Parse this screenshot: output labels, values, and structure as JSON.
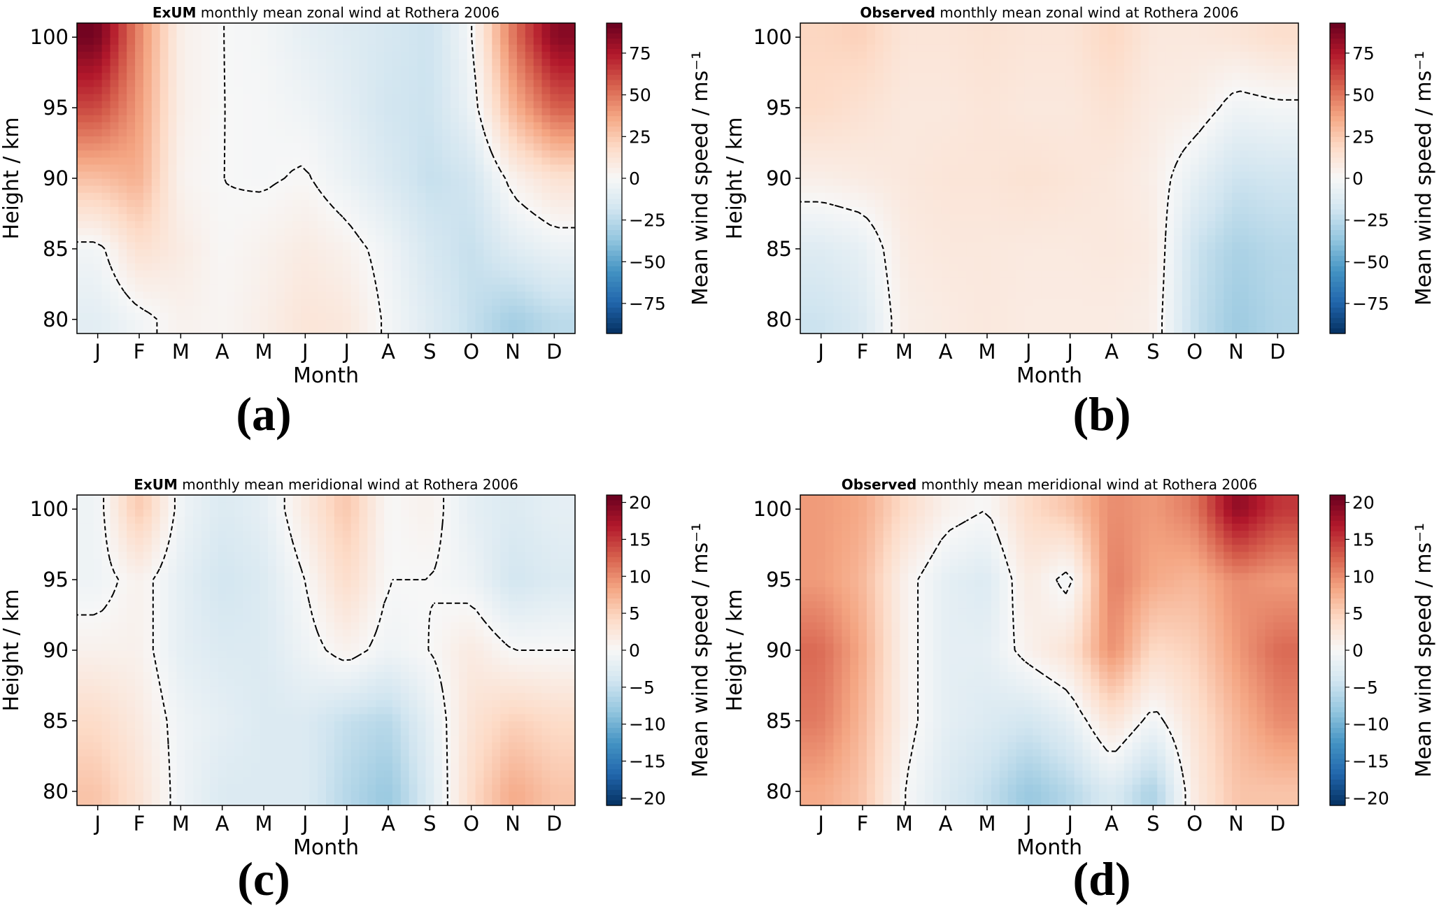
{
  "figure": {
    "panels": [
      {
        "id": "a",
        "label": "(a)",
        "title_bold": "ExUM",
        "title_rest": " monthly mean zonal wind at Rothera 2006",
        "colorbar_label": "Mean wind speed / ms⁻¹",
        "colorbar_ticks": [
          "75",
          "50",
          "25",
          "0",
          "−25",
          "−50",
          "−75"
        ]
      },
      {
        "id": "b",
        "label": "(b)",
        "title_bold": "Observed",
        "title_rest": " monthly mean zonal wind at Rothera 2006",
        "colorbar_label": "Mean wind speed / ms⁻¹",
        "colorbar_ticks": [
          "75",
          "50",
          "25",
          "0",
          "−25",
          "−50",
          "−75"
        ]
      },
      {
        "id": "c",
        "label": "(c)",
        "title_bold": "ExUM",
        "title_rest": " monthly mean meridional wind at Rothera 2006",
        "colorbar_label": "Mean wind speed / ms⁻¹",
        "colorbar_ticks": [
          "20",
          "15",
          "10",
          "5",
          "0",
          "−5",
          "−10",
          "−15",
          "−20"
        ]
      },
      {
        "id": "d",
        "label": "(d)",
        "title_bold": "Observed",
        "title_rest": " monthly mean meridional wind at Rothera 2006",
        "colorbar_label": "Mean wind speed / ms⁻¹",
        "colorbar_ticks": [
          "20",
          "15",
          "10",
          "5",
          "0",
          "−5",
          "−10",
          "−15",
          "−20"
        ]
      }
    ]
  },
  "chart_data": [
    {
      "type": "heatmap",
      "title": "ExUM monthly mean zonal wind at Rothera 2006",
      "xlabel": "Month",
      "ylabel": "Height / km",
      "x": [
        "J",
        "F",
        "M",
        "A",
        "M",
        "J",
        "J",
        "A",
        "S",
        "O",
        "N",
        "D"
      ],
      "y": [
        80,
        85,
        90,
        95,
        100
      ],
      "ylim": [
        79,
        101
      ],
      "yticks": [
        "80",
        "85",
        "90",
        "95",
        "100"
      ],
      "colorbar_label": "Mean wind speed / ms⁻¹",
      "zlim": [
        -93,
        93
      ],
      "z": [
        [
          -10,
          -3,
          4,
          2,
          6,
          12,
          10,
          -2,
          -12,
          -22,
          -32,
          -25
        ],
        [
          -3,
          15,
          8,
          1,
          4,
          8,
          4,
          -4,
          -16,
          -22,
          -12,
          -6
        ],
        [
          28,
          34,
          3,
          0,
          -1,
          1,
          -6,
          -14,
          -22,
          -18,
          4,
          14
        ],
        [
          62,
          40,
          5,
          0,
          -1,
          -4,
          -10,
          -18,
          -20,
          -6,
          32,
          56
        ],
        [
          90,
          45,
          5,
          0,
          -2,
          -8,
          -12,
          -16,
          -20,
          -2,
          50,
          85
        ]
      ],
      "zero_contour": "dashed"
    },
    {
      "type": "heatmap",
      "title": "Observed monthly mean zonal wind at Rothera 2006",
      "xlabel": "Month",
      "ylabel": "Height / km",
      "x": [
        "J",
        "F",
        "M",
        "A",
        "M",
        "J",
        "J",
        "A",
        "S",
        "O",
        "N",
        "D"
      ],
      "y": [
        80,
        85,
        90,
        95,
        100
      ],
      "ylim": [
        79,
        101
      ],
      "yticks": [
        "80",
        "85",
        "90",
        "95",
        "100"
      ],
      "colorbar_label": "Mean wind speed / ms⁻¹",
      "zlim": [
        -93,
        93
      ],
      "z": [
        [
          -20,
          -14,
          6,
          8,
          10,
          8,
          8,
          8,
          6,
          -22,
          -34,
          -28
        ],
        [
          -12,
          -8,
          8,
          10,
          10,
          9,
          9,
          10,
          8,
          -20,
          -30,
          -26
        ],
        [
          6,
          8,
          10,
          12,
          12,
          14,
          12,
          10,
          6,
          -8,
          -20,
          -18
        ],
        [
          18,
          14,
          10,
          10,
          12,
          10,
          10,
          14,
          8,
          6,
          -4,
          -2
        ],
        [
          20,
          22,
          12,
          12,
          14,
          12,
          12,
          20,
          10,
          10,
          12,
          16
        ]
      ],
      "zero_contour": "dashed"
    },
    {
      "type": "heatmap",
      "title": "ExUM monthly mean meridional wind at Rothera 2006",
      "xlabel": "Month",
      "ylabel": "Height / km",
      "x": [
        "J",
        "F",
        "M",
        "A",
        "M",
        "J",
        "J",
        "A",
        "S",
        "O",
        "N",
        "D"
      ],
      "y": [
        80,
        85,
        90,
        95,
        100
      ],
      "ylim": [
        79,
        101
      ],
      "yticks": [
        "80",
        "85",
        "90",
        "95",
        "100"
      ],
      "colorbar_label": "Mean wind speed / ms⁻¹",
      "zlim": [
        -21,
        21
      ],
      "z": [
        [
          6,
          3,
          -1,
          -3,
          -3,
          -3,
          -6,
          -8,
          -3,
          4,
          8,
          6
        ],
        [
          4,
          2,
          -1,
          -2,
          -3,
          -3,
          -5,
          -6,
          -2,
          3,
          5,
          4
        ],
        [
          1,
          1,
          -2,
          -3,
          -3,
          -1,
          1,
          -1,
          0,
          2,
          0,
          0
        ],
        [
          -1,
          1,
          -2,
          -4,
          -3,
          0,
          4,
          0,
          0,
          -1,
          -4,
          -3
        ],
        [
          -1,
          6,
          -1,
          -3,
          -2,
          2,
          6,
          0,
          1,
          -2,
          -3,
          -2
        ]
      ],
      "zero_contour": "dashed"
    },
    {
      "type": "heatmap",
      "title": "Observed monthly mean meridional wind at Rothera 2006",
      "xlabel": "Month",
      "ylabel": "Height / km",
      "x": [
        "J",
        "F",
        "M",
        "A",
        "M",
        "J",
        "J",
        "A",
        "S",
        "O",
        "N",
        "D"
      ],
      "y": [
        80,
        85,
        90,
        95,
        100
      ],
      "ylim": [
        79,
        101
      ],
      "yticks": [
        "80",
        "85",
        "90",
        "95",
        "100"
      ],
      "colorbar_label": "Mean wind speed / ms⁻¹",
      "zlim": [
        -21,
        21
      ],
      "z": [
        [
          8,
          6,
          0,
          -3,
          -5,
          -8,
          -6,
          -3,
          -7,
          2,
          6,
          6
        ],
        [
          11,
          7,
          1,
          -2,
          -3,
          -4,
          -2,
          3,
          -1,
          3,
          7,
          10
        ],
        [
          12,
          8,
          1,
          -2,
          -2,
          1,
          3,
          10,
          4,
          5,
          9,
          12
        ],
        [
          9,
          7,
          1,
          -2,
          -3,
          2,
          -1,
          11,
          8,
          7,
          10,
          9
        ],
        [
          9,
          8,
          4,
          1,
          0,
          4,
          6,
          10,
          9,
          11,
          19,
          15
        ]
      ],
      "zero_contour": "dashed"
    }
  ]
}
